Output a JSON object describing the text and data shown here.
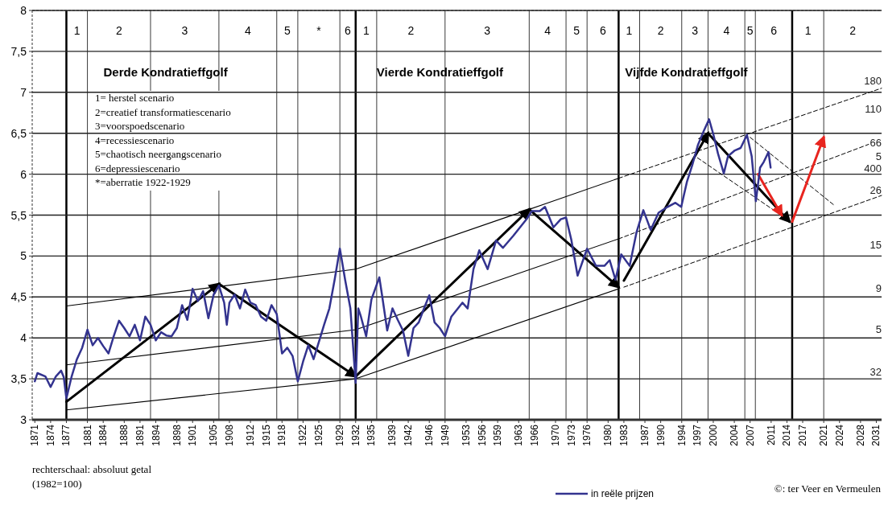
{
  "chart_data": {
    "type": "line",
    "xlim": [
      1870.5,
      2032
    ],
    "ylim": [
      3,
      8
    ],
    "xticks": [
      1871,
      1874,
      1877,
      1881,
      1884,
      1888,
      1891,
      1894,
      1898,
      1901,
      1905,
      1908,
      1912,
      1915,
      1918,
      1922,
      1925,
      1929,
      1932,
      1935,
      1939,
      1942,
      1946,
      1949,
      1953,
      1956,
      1959,
      1963,
      1966,
      1970,
      1973,
      1976,
      1980,
      1983,
      1987,
      1990,
      1994,
      1997,
      2000,
      2004,
      2007,
      2011,
      2014,
      2017,
      2021,
      2024,
      2028,
      2031
    ],
    "yticks": [
      3,
      {
        "value": 3.5,
        "label": "3,5"
      },
      4,
      {
        "value": 4.5,
        "label": "4,5"
      },
      5,
      {
        "value": 5.5,
        "label": "5,5"
      },
      6,
      {
        "value": 6.5,
        "label": "6,5"
      },
      7,
      {
        "value": 7.5,
        "label": "7,5"
      },
      8
    ],
    "grid": "y",
    "legend": "bottom",
    "series": [
      {
        "name": "in reële prijzen",
        "color": "#33338f",
        "x": [
          1871,
          1871.5,
          1873,
          1874,
          1875,
          1876,
          1876.5,
          1877,
          1878,
          1879,
          1880,
          1881,
          1882,
          1883,
          1884,
          1885,
          1886,
          1887,
          1888,
          1889,
          1890,
          1891,
          1892,
          1893,
          1894,
          1895,
          1896,
          1897,
          1898,
          1899,
          1900,
          1901,
          1902,
          1903,
          1904,
          1905,
          1906,
          1907,
          1907.5,
          1908,
          1909,
          1910,
          1911,
          1912,
          1913,
          1914,
          1915,
          1916,
          1917,
          1918,
          1919,
          1920,
          1921,
          1922,
          1923,
          1924,
          1925,
          1926,
          1927,
          1928,
          1929,
          1930,
          1931,
          1932,
          1932.5,
          1933,
          1934,
          1935,
          1936.5,
          1937,
          1938,
          1939,
          1940,
          1941,
          1942,
          1943,
          1944,
          1945,
          1946,
          1947,
          1948,
          1949,
          1950.2,
          1952.3,
          1953.3,
          1954.4,
          1955.5,
          1957.1,
          1958.7,
          1960,
          1962,
          1964.5,
          1965.5,
          1967,
          1968,
          1969.6,
          1971,
          1972,
          1973,
          1974.2,
          1976,
          1977.7,
          1979.3,
          1980.3,
          1981.4,
          1982.5,
          1984.1,
          1985.4,
          1986.7,
          1988.1,
          1989.6,
          1991.3,
          1992.8,
          1993.9,
          1995,
          1996,
          1997.1,
          1998.2,
          1999.2,
          2000,
          2000.9,
          2002,
          2002.8,
          2004.1,
          2005.2,
          2006.4,
          2007.3,
          2008.1,
          2008.9,
          2009.6,
          2010.5,
          2010.9
        ],
        "values": [
          3.47,
          3.57,
          3.53,
          3.4,
          3.53,
          3.6,
          3.52,
          3.26,
          3.53,
          3.74,
          3.88,
          4.1,
          3.91,
          4.0,
          3.9,
          3.81,
          4.02,
          4.21,
          4.12,
          4.02,
          4.16,
          3.97,
          4.26,
          4.16,
          3.97,
          4.07,
          4.03,
          4.02,
          4.12,
          4.4,
          4.22,
          4.6,
          4.45,
          4.57,
          4.24,
          4.53,
          4.64,
          4.43,
          4.16,
          4.43,
          4.53,
          4.36,
          4.59,
          4.43,
          4.4,
          4.26,
          4.21,
          4.4,
          4.29,
          3.81,
          3.88,
          3.78,
          3.47,
          3.71,
          3.91,
          3.74,
          3.95,
          4.16,
          4.36,
          4.71,
          5.09,
          4.71,
          4.36,
          3.45,
          4.36,
          4.26,
          4.02,
          4.47,
          4.74,
          4.53,
          4.09,
          4.36,
          4.22,
          4.09,
          3.78,
          4.12,
          4.19,
          4.36,
          4.52,
          4.19,
          4.12,
          4.02,
          4.26,
          4.43,
          4.36,
          4.84,
          5.07,
          4.84,
          5.19,
          5.1,
          5.25,
          5.45,
          5.55,
          5.55,
          5.6,
          5.35,
          5.45,
          5.47,
          5.2,
          4.76,
          5.09,
          4.88,
          4.88,
          4.95,
          4.71,
          5.02,
          4.88,
          5.29,
          5.56,
          5.32,
          5.53,
          5.6,
          5.65,
          5.6,
          5.91,
          6.11,
          6.36,
          6.53,
          6.67,
          6.49,
          6.25,
          6.01,
          6.22,
          6.29,
          6.32,
          6.48,
          6.22,
          5.67,
          6.08,
          6.15,
          6.27,
          6.08
        ]
      },
      {
        "color": "#000000",
        "x": [
          1877,
          1932,
          1965,
          1982
        ],
        "values": [
          4.39,
          4.84,
          5.57,
          5.95
        ]
      },
      {
        "color": "#000000",
        "x": [
          1982,
          2032
        ],
        "values": [
          5.95,
          7.05
        ],
        "line_style": "dashed"
      },
      {
        "color": "#000000",
        "x": [
          1877,
          1932,
          1982
        ],
        "values": [
          3.67,
          4.1,
          5.21
        ]
      },
      {
        "color": "#000000",
        "x": [
          1982,
          2031
        ],
        "values": [
          5.21,
          6.4
        ],
        "line_style": "dashed"
      },
      {
        "color": "#000000",
        "x": [
          1877,
          1932,
          1982
        ],
        "values": [
          3.12,
          3.5,
          4.6
        ]
      },
      {
        "color": "#000000",
        "x": [
          1983,
          2032
        ],
        "values": [
          4.62,
          5.74
        ],
        "line_style": "dashed"
      },
      {
        "color": "#000000",
        "x": [
          1997,
          2014
        ],
        "values": [
          6.2,
          5.45
        ],
        "line_style": "dashed"
      },
      {
        "color": "#000000",
        "x": [
          2007,
          2023
        ],
        "values": [
          6.45,
          5.62
        ],
        "line_style": "dashed"
      },
      {
        "color": "#000000",
        "x": [
          1877,
          1906
        ],
        "values": [
          3.22,
          4.66
        ]
      },
      {
        "color": "#000000",
        "x": [
          1906,
          1932
        ],
        "values": [
          4.66,
          3.53
        ]
      },
      {
        "color": "#000000",
        "x": [
          1932,
          1965
        ],
        "values": [
          3.53,
          5.57
        ]
      },
      {
        "color": "#000000",
        "x": [
          1965,
          1982
        ],
        "values": [
          5.57,
          4.62
        ]
      },
      {
        "color": "#000000",
        "x": [
          1983,
          1999
        ],
        "values": [
          4.7,
          6.5
        ]
      },
      {
        "color": "#000000",
        "x": [
          1999,
          2014.5
        ],
        "values": [
          6.5,
          5.42
        ]
      },
      {
        "color": "#e8251f",
        "x": [
          2008.5,
          2013
        ],
        "values": [
          6.0,
          5.5
        ]
      },
      {
        "color": "#e8251f",
        "x": [
          2015,
          2021
        ],
        "values": [
          5.42,
          6.45
        ]
      }
    ],
    "ref_lines": [
      {
        "axis": "x",
        "value": 1877,
        "color": "#000000"
      },
      {
        "axis": "x",
        "value": 1881,
        "color": "#3a3a3a"
      },
      {
        "axis": "x",
        "value": 1893,
        "color": "#3a3a3a"
      },
      {
        "axis": "x",
        "value": 1906,
        "color": "#3a3a3a"
      },
      {
        "axis": "x",
        "value": 1917,
        "color": "#3a3a3a"
      },
      {
        "axis": "x",
        "value": 1921,
        "color": "#3a3a3a"
      },
      {
        "axis": "x",
        "value": 1929,
        "color": "#3a3a3a"
      },
      {
        "axis": "x",
        "value": 1932,
        "color": "#000000"
      },
      {
        "axis": "x",
        "value": 1936,
        "color": "#3a3a3a"
      },
      {
        "axis": "x",
        "value": 1949,
        "color": "#3a3a3a"
      },
      {
        "axis": "x",
        "value": 1965,
        "color": "#3a3a3a"
      },
      {
        "axis": "x",
        "value": 1972,
        "color": "#3a3a3a"
      },
      {
        "axis": "x",
        "value": 1976,
        "color": "#3a3a3a"
      },
      {
        "axis": "x",
        "value": 1982,
        "color": "#000000"
      },
      {
        "axis": "x",
        "value": 1986,
        "color": "#3a3a3a"
      },
      {
        "axis": "x",
        "value": 1994,
        "color": "#3a3a3a"
      },
      {
        "axis": "x",
        "value": 1999,
        "color": "#3a3a3a"
      },
      {
        "axis": "x",
        "value": 2006,
        "color": "#3a3a3a"
      },
      {
        "axis": "x",
        "value": 2008,
        "color": "#3a3a3a"
      },
      {
        "axis": "x",
        "value": 2015,
        "color": "#000000"
      },
      {
        "axis": "x",
        "value": 2021,
        "color": "#3a3a3a"
      }
    ],
    "annotations": [
      "1= herstel scenario",
      "2=creatief transformatiescenario",
      "3=voorspoedscenario",
      "4=recessiescenario",
      "5=chaotisch neergangscenario",
      "6=depressiescenario",
      "*=aberratie 1922-1929",
      "rechterschaal: absoluut getal",
      "(1982=100)",
      "©: ter Veer en Vermeulen",
      "Derde Kondratieffgolf",
      "Vierde Kondratieffgolf",
      "Vijfde Kondratieffgolf",
      "1",
      "2",
      "3",
      "4",
      "5",
      "*",
      "6",
      "1",
      "2",
      "3",
      "4",
      "5",
      "6",
      "1",
      "2",
      "3",
      "4",
      "5",
      "6",
      "1",
      "2",
      "180",
      "110",
      "66",
      "5",
      "400",
      "26",
      "15",
      "9",
      "5",
      "32"
    ]
  }
}
